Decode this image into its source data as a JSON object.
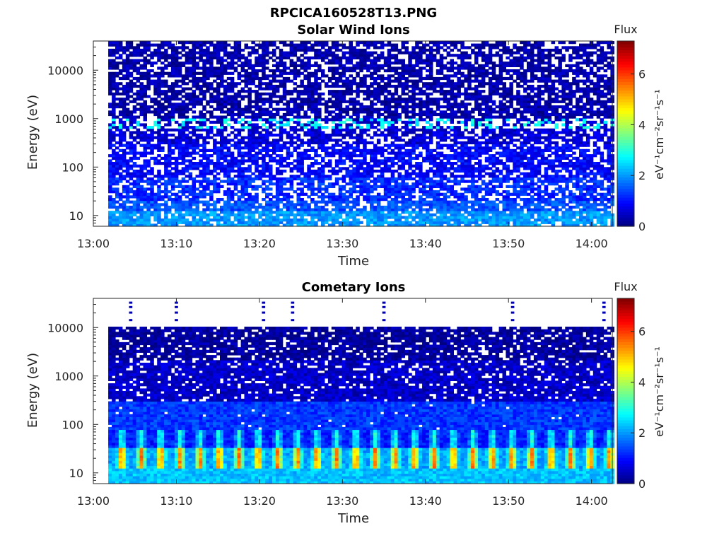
{
  "figure_title": "RPCICA160528T13.PNG",
  "colorbar": {
    "title": "Flux",
    "label": "eV⁻¹cm⁻²sr⁻¹s⁻¹",
    "range": [
      0,
      7.3
    ],
    "ticks": [
      "0",
      "2",
      "4",
      "6"
    ],
    "tick_values": [
      0,
      2,
      4,
      6
    ],
    "colormap": "jet"
  },
  "chart_data": [
    {
      "type": "heatmap",
      "title": "Solar Wind Ions",
      "xlabel": "Time",
      "ylabel": "Energy (eV)",
      "x_ticks": [
        "13:00",
        "13:10",
        "13:20",
        "13:30",
        "13:40",
        "13:50",
        "14:00"
      ],
      "x_tick_minutes": [
        0,
        10,
        20,
        30,
        40,
        50,
        60
      ],
      "xlim_minutes": [
        0,
        62.5
      ],
      "data_start_minute": 1.8,
      "data_end_minute": 62.5,
      "y_ticks": [
        "10",
        "100",
        "1000",
        "10000"
      ],
      "y_tick_values": [
        10,
        100,
        1000,
        10000
      ],
      "ylim": [
        6,
        40000
      ],
      "y_scale": "log",
      "value_range": [
        0,
        7.3
      ],
      "bands": [
        {
          "energy_from": 6,
          "energy_to": 12,
          "flux": 2.0,
          "coverage": 0.85
        },
        {
          "energy_from": 12,
          "energy_to": 20,
          "flux": 1.5,
          "coverage": 0.8
        },
        {
          "energy_from": 20,
          "energy_to": 60,
          "flux": 1.2,
          "coverage": 0.7
        },
        {
          "energy_from": 60,
          "energy_to": 300,
          "flux": 0.9,
          "coverage": 0.7
        },
        {
          "energy_from": 300,
          "energy_to": 650,
          "flux": 0.6,
          "coverage": 0.7
        },
        {
          "energy_from": 650,
          "energy_to": 1000,
          "flux": 2.7,
          "coverage": 0.6
        },
        {
          "energy_from": 1000,
          "energy_to": 40000,
          "flux": 0.3,
          "coverage": 0.7
        }
      ]
    },
    {
      "type": "heatmap",
      "title": "Cometary Ions",
      "xlabel": "Time",
      "ylabel": "Energy (eV)",
      "x_ticks": [
        "13:00",
        "13:10",
        "13:20",
        "13:30",
        "13:40",
        "13:50",
        "14:00"
      ],
      "x_tick_minutes": [
        0,
        10,
        20,
        30,
        40,
        50,
        60
      ],
      "xlim_minutes": [
        0,
        62.5
      ],
      "data_start_minute": 1.8,
      "data_end_minute": 62.5,
      "y_ticks": [
        "10",
        "100",
        "1000",
        "10000"
      ],
      "y_tick_values": [
        10,
        100,
        1000,
        10000
      ],
      "ylim": [
        6,
        40000
      ],
      "y_scale": "log",
      "value_range": [
        0,
        7.3
      ],
      "bands": [
        {
          "energy_from": 6,
          "energy_to": 12,
          "flux": 2.3,
          "coverage": 1.0
        },
        {
          "energy_from": 12,
          "energy_to": 35,
          "flux": 4.6,
          "coverage": 1.0
        },
        {
          "energy_from": 35,
          "energy_to": 80,
          "flux": 2.4,
          "coverage": 1.0
        },
        {
          "energy_from": 80,
          "energy_to": 300,
          "flux": 1.3,
          "coverage": 0.97
        },
        {
          "energy_from": 300,
          "energy_to": 2000,
          "flux": 0.5,
          "coverage": 0.85
        },
        {
          "energy_from": 2000,
          "energy_to": 11000,
          "flux": 0.2,
          "coverage": 0.8
        }
      ],
      "high_energy_bursts_minutes": [
        4.5,
        10,
        20.5,
        24,
        35,
        50.5,
        61.5
      ]
    }
  ]
}
